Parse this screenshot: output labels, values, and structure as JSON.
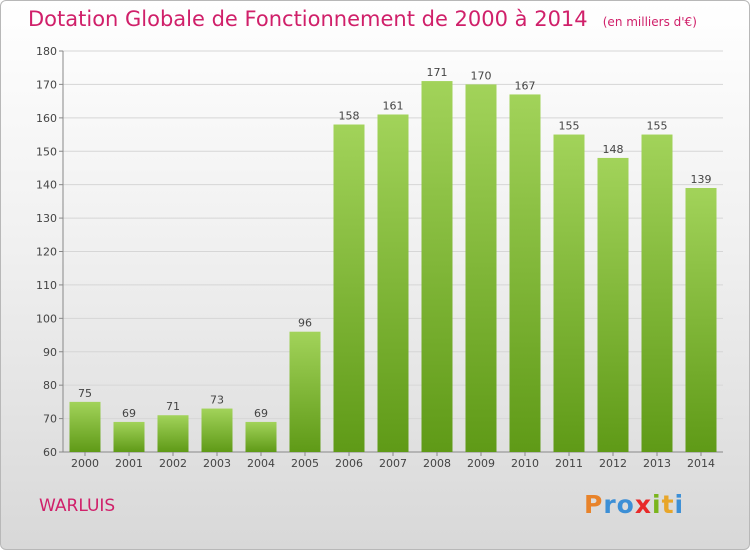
{
  "title": "Dotation Globale de Fonctionnement de 2000 à 2014",
  "unit_note": "(en milliers d'€)",
  "commune": "WARLUIS",
  "logo": {
    "letters": [
      "P",
      "r",
      "o",
      "x",
      "i",
      "t",
      "i"
    ],
    "colors": [
      "#e8832a",
      "#3c8fd6",
      "#3c8fd6",
      "#e82a2a",
      "#7ab51d",
      "#e8a62a",
      "#3c8fd6"
    ]
  },
  "colors": {
    "bar_top": "#a2d35a",
    "bar_bottom": "#5f9a17",
    "title": "#d0206a"
  },
  "chart_data": {
    "type": "bar",
    "categories": [
      "2000",
      "2001",
      "2002",
      "2003",
      "2004",
      "2005",
      "2006",
      "2007",
      "2008",
      "2009",
      "2010",
      "2011",
      "2012",
      "2013",
      "2014"
    ],
    "values": [
      75,
      69,
      71,
      73,
      69,
      96,
      158,
      161,
      171,
      170,
      167,
      155,
      148,
      155,
      139
    ],
    "ylim": [
      60,
      180
    ],
    "yticks": [
      60,
      70,
      80,
      90,
      100,
      110,
      120,
      130,
      140,
      150,
      160,
      170,
      180
    ],
    "grid": true,
    "legend": "none"
  }
}
